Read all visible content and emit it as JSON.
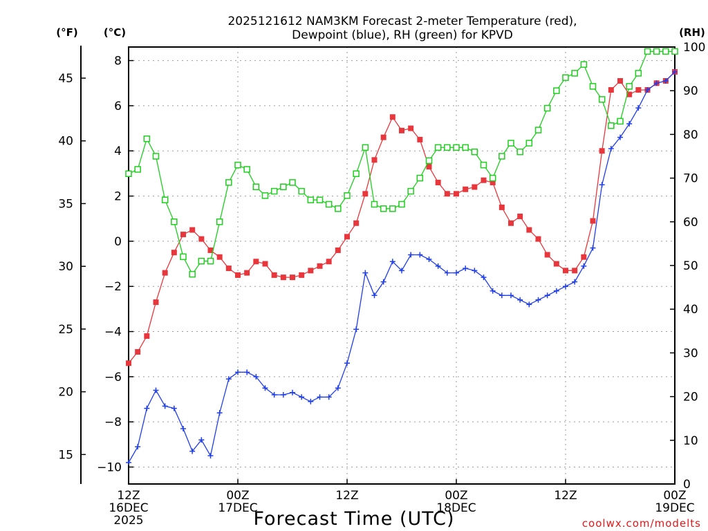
{
  "chart_data": {
    "type": "line",
    "title_line1": "2025121612 NAM3KM Forecast 2-meter Temperature (red),",
    "title_line2": "Dewpoint (blue), RH (green) for KPVD",
    "xlabel": "Forecast Time (UTC)",
    "credit": "coolwx.com/modelts",
    "units": {
      "fahrenheit": "(°F)",
      "celsius": "(°C)",
      "rh": "(RH)"
    },
    "x_ticks": [
      {
        "hour": 0,
        "line1": "12Z",
        "line2": "16DEC",
        "line3": "2025"
      },
      {
        "hour": 12,
        "line1": "00Z",
        "line2": "17DEC",
        "line3": ""
      },
      {
        "hour": 24,
        "line1": "12Z",
        "line2": "",
        "line3": ""
      },
      {
        "hour": 36,
        "line1": "00Z",
        "line2": "18DEC",
        "line3": ""
      },
      {
        "hour": 48,
        "line1": "12Z",
        "line2": "",
        "line3": ""
      },
      {
        "hour": 60,
        "line1": "00Z",
        "line2": "19DEC",
        "line3": ""
      }
    ],
    "xlim": [
      0,
      60
    ],
    "celsius_axis": {
      "ylim": [
        -10.75,
        8.6
      ],
      "ticks": [
        8,
        6,
        4,
        2,
        0,
        -2,
        -4,
        -6,
        -8,
        -10
      ],
      "tick_labels": [
        "8",
        "6",
        "4",
        "2",
        "0",
        "−2",
        "−4",
        "−6",
        "−8",
        "−10"
      ]
    },
    "fahrenheit_axis": {
      "ticks": [
        45,
        40,
        35,
        30,
        25,
        20,
        15
      ]
    },
    "rh_axis": {
      "ylim": [
        0,
        100
      ],
      "ticks": [
        100,
        90,
        80,
        70,
        60,
        50,
        40,
        30,
        20,
        10,
        0
      ]
    },
    "series": [
      {
        "name": "2-meter Temperature",
        "unit": "C",
        "color": "#e8373c",
        "marker": "filled-square",
        "values": [
          -5.4,
          -4.9,
          -4.2,
          -2.7,
          -1.4,
          -0.5,
          0.3,
          0.5,
          0.1,
          -0.4,
          -0.7,
          -1.2,
          -1.5,
          -1.4,
          -0.9,
          -1.0,
          -1.5,
          -1.6,
          -1.6,
          -1.5,
          -1.3,
          -1.1,
          -0.9,
          -0.4,
          0.2,
          0.8,
          2.1,
          3.6,
          4.6,
          5.5,
          4.9,
          5.0,
          4.5,
          3.3,
          2.6,
          2.1,
          2.1,
          2.3,
          2.4,
          2.7,
          2.6,
          1.5,
          0.8,
          1.1,
          0.5,
          0.1,
          -0.6,
          -1.0,
          -1.3,
          -1.3,
          -0.7,
          0.9,
          4.0,
          6.7,
          7.1,
          6.5,
          6.7,
          6.7,
          7.0,
          7.1,
          7.5
        ]
      },
      {
        "name": "Dewpoint",
        "unit": "C",
        "color": "#1f3ee6",
        "marker": "plus",
        "values": [
          -9.8,
          -9.1,
          -7.4,
          -6.6,
          -7.3,
          -7.4,
          -8.3,
          -9.3,
          -8.8,
          -9.5,
          -7.6,
          -6.1,
          -5.8,
          -5.8,
          -6.0,
          -6.5,
          -6.8,
          -6.8,
          -6.7,
          -6.9,
          -7.1,
          -6.9,
          -6.9,
          -6.5,
          -5.4,
          -3.9,
          -1.4,
          -2.4,
          -1.8,
          -0.9,
          -1.3,
          -0.6,
          -0.6,
          -0.8,
          -1.1,
          -1.4,
          -1.4,
          -1.2,
          -1.3,
          -1.6,
          -2.2,
          -2.4,
          -2.4,
          -2.6,
          -2.8,
          -2.6,
          -2.4,
          -2.2,
          -2.0,
          -1.8,
          -1.1,
          -0.3,
          2.5,
          4.1,
          4.6,
          5.2,
          5.9,
          6.7,
          7.0,
          7.1,
          7.5
        ]
      },
      {
        "name": "RH",
        "unit": "%",
        "color": "#1ecf1e",
        "marker": "open-square",
        "values": [
          71,
          72,
          79,
          75,
          65,
          60,
          52,
          48,
          51,
          51,
          60,
          69,
          73,
          72,
          68,
          66,
          67,
          68,
          69,
          67,
          65,
          65,
          64,
          63,
          66,
          71,
          77,
          64,
          63,
          63,
          64,
          67,
          70,
          74,
          77,
          77,
          77,
          77,
          76,
          73,
          70,
          75,
          78,
          76,
          78,
          81,
          86,
          90,
          93,
          94,
          96,
          91,
          88,
          82,
          83,
          91,
          94,
          99,
          99,
          99,
          99
        ]
      }
    ]
  }
}
